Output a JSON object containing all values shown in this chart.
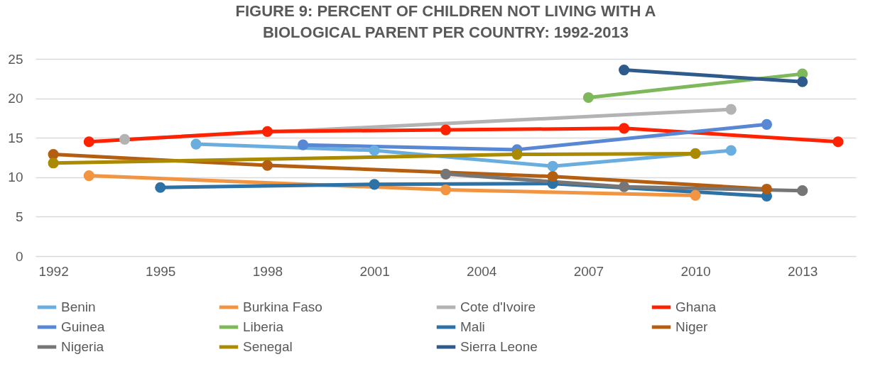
{
  "chart_data": {
    "type": "line",
    "title": "FIGURE 9: PERCENT OF CHILDREN  NOT LIVING WITH A BIOLOGICAL PARENT PER COUNTRY: 1992-2013",
    "xlim": [
      1991.5,
      2014.5
    ],
    "xticks": [
      1992,
      1995,
      1998,
      2001,
      2004,
      2007,
      2010,
      2013
    ],
    "ylim": [
      0,
      25
    ],
    "yticks": [
      0,
      5,
      10,
      15,
      20,
      25
    ],
    "grid": "y",
    "legend": "bottom",
    "marker": "circle",
    "line_style": "solid",
    "series": [
      {
        "name": "Benin",
        "color": "#6aaddf",
        "x": [
          1996,
          2001,
          2006,
          2011
        ],
        "values": [
          14.2,
          13.4,
          11.4,
          13.4
        ]
      },
      {
        "name": "Burkina Faso",
        "color": "#f29542",
        "x": [
          1993,
          2003,
          2010
        ],
        "values": [
          10.2,
          8.4,
          7.7
        ]
      },
      {
        "name": "Cote d'Ivoire",
        "color": "#b3b3b3",
        "x": [
          1994,
          2011
        ],
        "values": [
          14.8,
          18.6
        ]
      },
      {
        "name": "Ghana",
        "color": "#ff2200",
        "x": [
          1993,
          1998,
          2003,
          2008,
          2014
        ],
        "values": [
          14.5,
          15.8,
          16.0,
          16.2,
          14.5
        ]
      },
      {
        "name": "Guinea",
        "color": "#5887d3",
        "x": [
          1999,
          2005,
          2012
        ],
        "values": [
          14.1,
          13.5,
          16.7
        ]
      },
      {
        "name": "Liberia",
        "color": "#7db85a",
        "x": [
          2007,
          2013
        ],
        "values": [
          20.1,
          23.1
        ]
      },
      {
        "name": "Mali",
        "color": "#2c72a6",
        "x": [
          1995,
          2001,
          2006,
          2012
        ],
        "values": [
          8.7,
          9.1,
          9.2,
          7.6
        ]
      },
      {
        "name": "Niger",
        "color": "#b45e12",
        "x": [
          1992,
          1998,
          2006,
          2012
        ],
        "values": [
          12.9,
          11.5,
          10.1,
          8.5
        ]
      },
      {
        "name": "Nigeria",
        "color": "#767676",
        "x": [
          2003,
          2008,
          2013
        ],
        "values": [
          10.4,
          8.8,
          8.3
        ]
      },
      {
        "name": "Senegal",
        "color": "#aa8a00",
        "x": [
          1992,
          2005,
          2010
        ],
        "values": [
          11.8,
          12.9,
          13.0
        ]
      },
      {
        "name": "Sierra Leone",
        "color": "#2e5a8c",
        "x": [
          2008,
          2013
        ],
        "values": [
          23.6,
          22.1
        ]
      }
    ]
  }
}
